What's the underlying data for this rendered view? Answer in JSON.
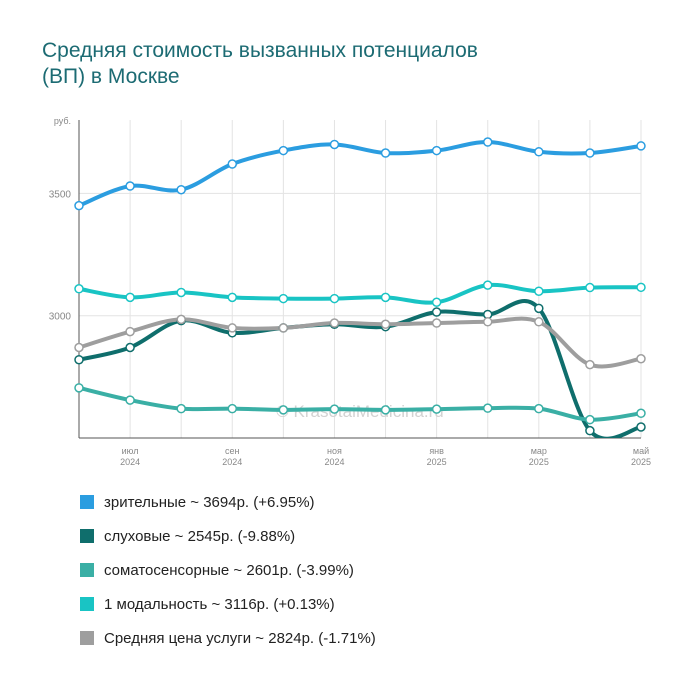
{
  "title_lines": [
    "Средняя стоимость вызванных потенциалов",
    "(ВП) в Москве"
  ],
  "watermark": "© KrasotaiMedicina.ru",
  "chart_data": {
    "type": "line",
    "title": "Средняя стоимость вызванных потенциалов (ВП) в Москве",
    "y_unit_label": "руб.",
    "ylim": [
      2500,
      3800
    ],
    "yticks": [
      3000,
      3500
    ],
    "grid": true,
    "x_ticks": [
      {
        "x": 1,
        "month": "июл",
        "year": "2024"
      },
      {
        "x": 3,
        "month": "сен",
        "year": "2024"
      },
      {
        "x": 5,
        "month": "ноя",
        "year": "2024"
      },
      {
        "x": 7,
        "month": "янв",
        "year": "2025"
      },
      {
        "x": 9,
        "month": "мар",
        "year": "2025"
      },
      {
        "x": 11,
        "month": "май",
        "year": "2025"
      }
    ],
    "x_range": [
      0,
      11
    ],
    "series": [
      {
        "name": "зрительные",
        "color": "#2b9de0",
        "legend": "зрительные ~ 3694р. (+6.95%)",
        "values": [
          3450,
          3530,
          3515,
          3620,
          3675,
          3700,
          3665,
          3675,
          3710,
          3670,
          3665,
          3694
        ]
      },
      {
        "name": "слуховые",
        "color": "#0f6e6c",
        "legend": "слуховые ~ 2545р. (-9.88%)",
        "values": [
          2820,
          2870,
          2980,
          2930,
          2950,
          2965,
          2955,
          3015,
          3005,
          3030,
          2530,
          2545
        ]
      },
      {
        "name": "соматосенсорные",
        "color": "#3aafa5",
        "legend": "соматосенсорные ~ 2601р. (-3.99%)",
        "values": [
          2705,
          2655,
          2620,
          2620,
          2615,
          2618,
          2615,
          2618,
          2622,
          2620,
          2575,
          2601
        ]
      },
      {
        "name": "1 модальность",
        "color": "#19c4c4",
        "legend": "1 модальность ~ 3116р. (+0.13%)",
        "values": [
          3110,
          3075,
          3095,
          3075,
          3070,
          3070,
          3075,
          3055,
          3125,
          3100,
          3115,
          3116
        ]
      },
      {
        "name": "Средняя цена услуги",
        "color": "#9e9e9e",
        "legend": "Средняя цена услуги ~ 2824р. (-1.71%)",
        "values": [
          2870,
          2935,
          2985,
          2950,
          2950,
          2970,
          2965,
          2970,
          2975,
          2975,
          2800,
          2824
        ]
      }
    ]
  }
}
